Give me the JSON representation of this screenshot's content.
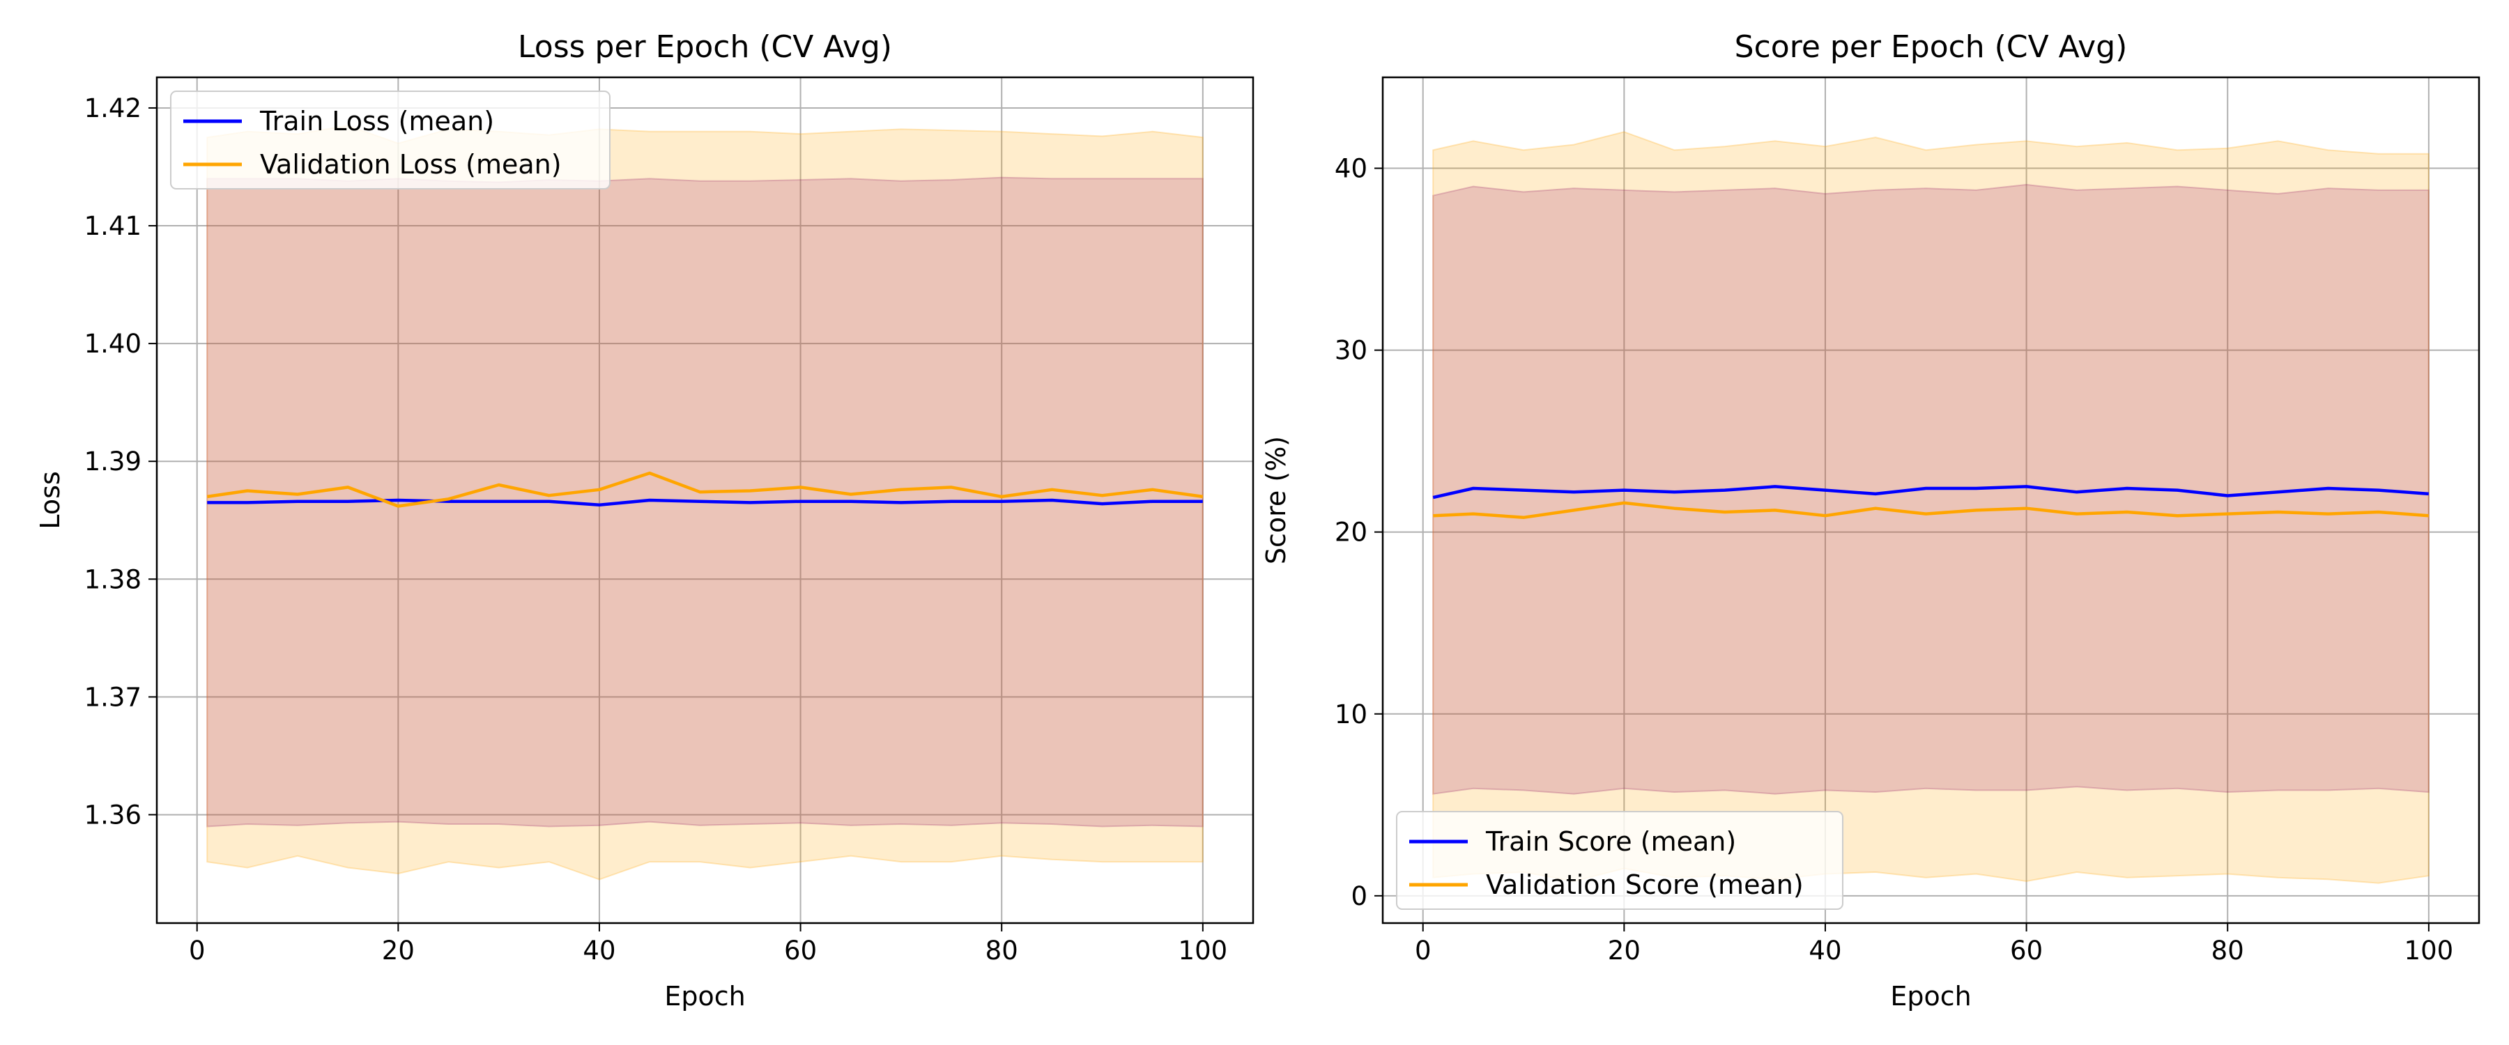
{
  "chart_data": [
    {
      "type": "line",
      "title": "Loss per Epoch (CV Avg)",
      "xlabel": "Epoch",
      "ylabel": "Loss",
      "xlim": [
        -4,
        105
      ],
      "ylim": [
        1.3508,
        1.4226
      ],
      "xticks": [
        0,
        20,
        40,
        60,
        80,
        100
      ],
      "xtick_labels": [
        "0",
        "20",
        "40",
        "60",
        "80",
        "100"
      ],
      "yticks": [
        1.36,
        1.37,
        1.38,
        1.39,
        1.4,
        1.41,
        1.42
      ],
      "ytick_labels": [
        "1.36",
        "1.37",
        "1.38",
        "1.39",
        "1.40",
        "1.41",
        "1.42"
      ],
      "grid": true,
      "legend_position": "top-left",
      "series": [
        {
          "name": "Train Loss (mean)",
          "color": "#0000ff",
          "band_color": "#800080",
          "band_opacity": 0.2,
          "x": [
            1,
            5,
            10,
            15,
            20,
            25,
            30,
            35,
            40,
            45,
            50,
            55,
            60,
            65,
            70,
            75,
            80,
            85,
            90,
            95,
            100
          ],
          "y": [
            1.3865,
            1.3865,
            1.3866,
            1.3866,
            1.3867,
            1.3866,
            1.3866,
            1.3866,
            1.3863,
            1.3867,
            1.3866,
            1.3865,
            1.3866,
            1.3866,
            1.3865,
            1.3866,
            1.3866,
            1.3867,
            1.3864,
            1.3866,
            1.3866
          ],
          "y_upper": [
            1.414,
            1.414,
            1.414,
            1.4138,
            1.414,
            1.4138,
            1.4137,
            1.4139,
            1.4138,
            1.414,
            1.4138,
            1.4138,
            1.4139,
            1.414,
            1.4138,
            1.4139,
            1.4141,
            1.414,
            1.414,
            1.414,
            1.414
          ],
          "y_lower": [
            1.359,
            1.3592,
            1.3591,
            1.3593,
            1.3594,
            1.3592,
            1.3592,
            1.359,
            1.3591,
            1.3594,
            1.3591,
            1.3592,
            1.3593,
            1.3591,
            1.3592,
            1.3591,
            1.3593,
            1.3592,
            1.359,
            1.3591,
            1.359
          ]
        },
        {
          "name": "Validation Loss (mean)",
          "color": "#ffa500",
          "band_color": "#ffa500",
          "band_opacity": 0.2,
          "x": [
            1,
            5,
            10,
            15,
            20,
            25,
            30,
            35,
            40,
            45,
            50,
            55,
            60,
            65,
            70,
            75,
            80,
            85,
            90,
            95,
            100
          ],
          "y": [
            1.387,
            1.3875,
            1.3872,
            1.3878,
            1.3862,
            1.3868,
            1.388,
            1.3871,
            1.3876,
            1.389,
            1.3874,
            1.3875,
            1.3878,
            1.3872,
            1.3876,
            1.3878,
            1.387,
            1.3876,
            1.3871,
            1.3876,
            1.387
          ],
          "y_upper": [
            1.4175,
            1.418,
            1.4178,
            1.4185,
            1.417,
            1.4182,
            1.418,
            1.4177,
            1.4182,
            1.418,
            1.418,
            1.418,
            1.4178,
            1.418,
            1.4182,
            1.4181,
            1.418,
            1.4178,
            1.4176,
            1.418,
            1.4175
          ],
          "y_lower": [
            1.356,
            1.3555,
            1.3565,
            1.3555,
            1.355,
            1.356,
            1.3555,
            1.356,
            1.3545,
            1.356,
            1.356,
            1.3555,
            1.356,
            1.3565,
            1.356,
            1.356,
            1.3565,
            1.3562,
            1.356,
            1.356,
            1.356
          ]
        }
      ]
    },
    {
      "type": "line",
      "title": "Score per Epoch (CV Avg)",
      "xlabel": "Epoch",
      "ylabel": "Score (%)",
      "xlim": [
        -4,
        105
      ],
      "ylim": [
        -1.5,
        45
      ],
      "xticks": [
        0,
        20,
        40,
        60,
        80,
        100
      ],
      "xtick_labels": [
        "0",
        "20",
        "40",
        "60",
        "80",
        "100"
      ],
      "yticks": [
        0,
        10,
        20,
        30,
        40
      ],
      "ytick_labels": [
        "0",
        "10",
        "20",
        "30",
        "40"
      ],
      "grid": true,
      "legend_position": "bottom-left",
      "series": [
        {
          "name": "Train Score (mean)",
          "color": "#0000ff",
          "band_color": "#800080",
          "band_opacity": 0.2,
          "x": [
            1,
            5,
            10,
            15,
            20,
            25,
            30,
            35,
            40,
            45,
            50,
            55,
            60,
            65,
            70,
            75,
            80,
            85,
            90,
            95,
            100
          ],
          "y": [
            21.9,
            22.4,
            22.3,
            22.2,
            22.3,
            22.2,
            22.3,
            22.5,
            22.3,
            22.1,
            22.4,
            22.4,
            22.5,
            22.2,
            22.4,
            22.3,
            22.0,
            22.2,
            22.4,
            22.3,
            22.1
          ],
          "y_upper": [
            38.5,
            39.0,
            38.7,
            38.9,
            38.8,
            38.7,
            38.8,
            38.9,
            38.6,
            38.8,
            38.9,
            38.8,
            39.1,
            38.8,
            38.9,
            39.0,
            38.8,
            38.6,
            38.9,
            38.8,
            38.8
          ],
          "y_lower": [
            5.6,
            5.9,
            5.8,
            5.6,
            5.9,
            5.7,
            5.8,
            5.6,
            5.8,
            5.7,
            5.9,
            5.8,
            5.8,
            6.0,
            5.8,
            5.9,
            5.7,
            5.8,
            5.8,
            5.9,
            5.7
          ]
        },
        {
          "name": "Validation Score (mean)",
          "color": "#ffa500",
          "band_color": "#ffa500",
          "band_opacity": 0.2,
          "x": [
            1,
            5,
            10,
            15,
            20,
            25,
            30,
            35,
            40,
            45,
            50,
            55,
            60,
            65,
            70,
            75,
            80,
            85,
            90,
            95,
            100
          ],
          "y": [
            20.9,
            21.0,
            20.8,
            21.2,
            21.6,
            21.3,
            21.1,
            21.2,
            20.9,
            21.3,
            21.0,
            21.2,
            21.3,
            21.0,
            21.1,
            20.9,
            21.0,
            21.1,
            21.0,
            21.1,
            20.9
          ],
          "y_upper": [
            41.0,
            41.5,
            41.0,
            41.3,
            42.0,
            41.0,
            41.2,
            41.5,
            41.2,
            41.7,
            41.0,
            41.3,
            41.5,
            41.2,
            41.4,
            41.0,
            41.1,
            41.5,
            41.0,
            40.8,
            40.8
          ],
          "y_lower": [
            1.0,
            1.2,
            1.3,
            0.8,
            1.5,
            1.0,
            1.1,
            0.9,
            1.2,
            1.3,
            1.0,
            1.2,
            0.8,
            1.3,
            1.0,
            1.1,
            1.2,
            1.0,
            0.9,
            0.7,
            1.1
          ]
        }
      ]
    }
  ]
}
